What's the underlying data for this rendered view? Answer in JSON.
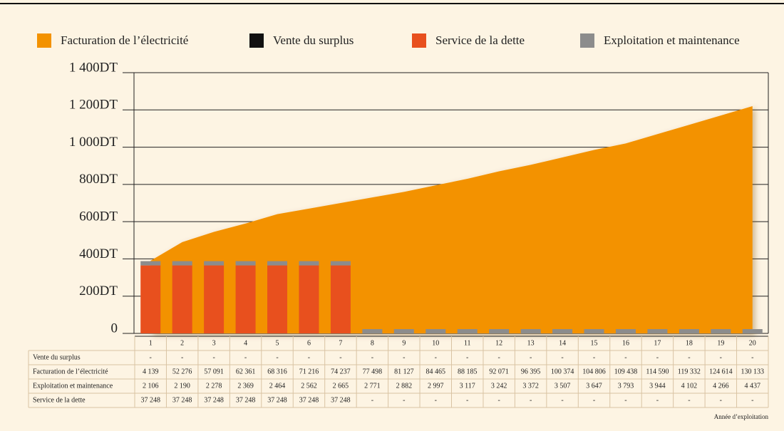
{
  "chart_data": {
    "type": "combo",
    "categories": [
      "1",
      "2",
      "3",
      "4",
      "5",
      "6",
      "7",
      "8",
      "9",
      "10",
      "11",
      "12",
      "13",
      "14",
      "15",
      "16",
      "17",
      "18",
      "19",
      "20"
    ],
    "series": [
      {
        "name": "Facturation de l’électricité",
        "color": "#f39200",
        "type": "area",
        "values": [
          390,
          490,
          545,
          590,
          640,
          670,
          700,
          730,
          760,
          795,
          830,
          870,
          905,
          945,
          985,
          1020,
          1070,
          1120,
          1170,
          1220
        ]
      },
      {
        "name": "Vente du surplus",
        "color": "#111111",
        "type": "bar",
        "values": [
          null,
          null,
          null,
          null,
          null,
          null,
          null,
          null,
          null,
          null,
          null,
          null,
          null,
          null,
          null,
          null,
          null,
          null,
          null,
          null
        ]
      },
      {
        "name": "Service de la dette",
        "color": "#e8501e",
        "type": "bar",
        "values": [
          365,
          365,
          365,
          365,
          365,
          365,
          365,
          null,
          null,
          null,
          null,
          null,
          null,
          null,
          null,
          null,
          null,
          null,
          null,
          null
        ]
      },
      {
        "name": "Exploitation et maintenance",
        "color": "#8c8c8c",
        "type": "bar",
        "values": [
          23,
          23,
          23,
          23,
          23,
          23,
          23,
          23,
          23,
          23,
          23,
          23,
          23,
          23,
          23,
          23,
          23,
          23,
          23,
          23
        ]
      }
    ],
    "ylim": [
      0,
      1400
    ],
    "yticks": [
      0,
      {
        "value": 200,
        "label": "200DT"
      },
      {
        "value": 400,
        "label": "400DT"
      },
      {
        "value": 600,
        "label": "600DT"
      },
      {
        "value": 800,
        "label": "800DT"
      },
      {
        "value": 1000,
        "label": "1 000DT"
      },
      {
        "value": 1200,
        "label": "1 200DT"
      },
      {
        "value": 1400,
        "label": "1 400DT"
      }
    ],
    "grid": true,
    "legend": "top"
  },
  "table": {
    "rows": [
      {
        "label": "Vente du surplus",
        "cells": [
          "-",
          "-",
          "-",
          "-",
          "-",
          "-",
          "-",
          "-",
          "-",
          "-",
          "-",
          "-",
          "-",
          "-",
          "-",
          "-",
          "-",
          "-",
          "-",
          "-"
        ]
      },
      {
        "label": "Facturation de l’électricité",
        "cells": [
          "4 139",
          "52 276",
          "57 091",
          "62 361",
          "68 316",
          "71 216",
          "74 237",
          "77 498",
          "81 127",
          "84 465",
          "88 185",
          "92 071",
          "96 395",
          "100 374",
          "104 806",
          "109 438",
          "114 590",
          "119 332",
          "124 614",
          "130 133"
        ]
      },
      {
        "label": "Exploitation et maintenance",
        "cells": [
          "2 106",
          "2 190",
          "2 278",
          "2 369",
          "2 464",
          "2 562",
          "2 665",
          "2 771",
          "2 882",
          "2 997",
          "3 117",
          "3 242",
          "3 372",
          "3 507",
          "3 647",
          "3 793",
          "3 944",
          "4 102",
          "4 266",
          "4 437"
        ]
      },
      {
        "label": "Service de la dette",
        "cells": [
          "37 248",
          "37 248",
          "37 248",
          "37 248",
          "37 248",
          "37 248",
          "37 248",
          "-",
          "-",
          "-",
          "-",
          "-",
          "-",
          "-",
          "-",
          "-",
          "-",
          "-",
          "-",
          "-"
        ]
      }
    ],
    "footnote": "Année d’exploitation"
  }
}
